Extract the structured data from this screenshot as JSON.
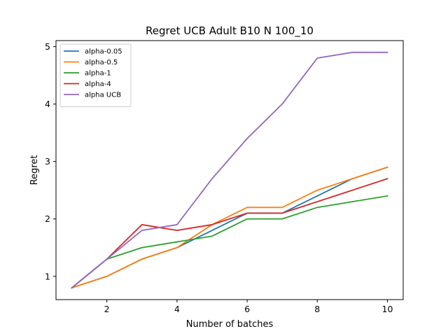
{
  "chart_data": {
    "type": "line",
    "title": "Regret UCB Adult B10 N 100_10",
    "xlabel": "Number of batches",
    "ylabel": "Regret",
    "x": [
      1,
      2,
      3,
      4,
      5,
      6,
      7,
      8,
      9,
      10
    ],
    "xlim": [
      0.55,
      10.45
    ],
    "ylim": [
      0.595,
      5.105
    ],
    "xticks": [
      2,
      4,
      6,
      8,
      10
    ],
    "yticks": [
      1,
      2,
      3,
      4,
      5
    ],
    "grid": false,
    "legend_position": "top-left",
    "series": [
      {
        "name": "alpha-0.05",
        "color": "#1f77b4",
        "values": [
          0.8,
          1.0,
          1.3,
          1.5,
          1.8,
          2.1,
          2.1,
          2.4,
          2.7,
          2.9
        ]
      },
      {
        "name": "alpha-0.5",
        "color": "#ff7f0e",
        "values": [
          0.8,
          1.0,
          1.3,
          1.5,
          1.9,
          2.2,
          2.2,
          2.5,
          2.7,
          2.9
        ]
      },
      {
        "name": "alpha-1",
        "color": "#2ca02c",
        "values": [
          0.8,
          1.3,
          1.5,
          1.6,
          1.7,
          2.0,
          2.0,
          2.2,
          2.3,
          2.4
        ]
      },
      {
        "name": "alpha-4",
        "color": "#d62728",
        "values": [
          0.8,
          1.3,
          1.9,
          1.8,
          1.9,
          2.1,
          2.1,
          2.3,
          2.5,
          2.7
        ]
      },
      {
        "name": "alpha UCB",
        "color": "#9467bd",
        "values": [
          0.8,
          1.3,
          1.8,
          1.9,
          2.7,
          3.4,
          4.0,
          4.8,
          4.9,
          4.9
        ]
      }
    ]
  }
}
